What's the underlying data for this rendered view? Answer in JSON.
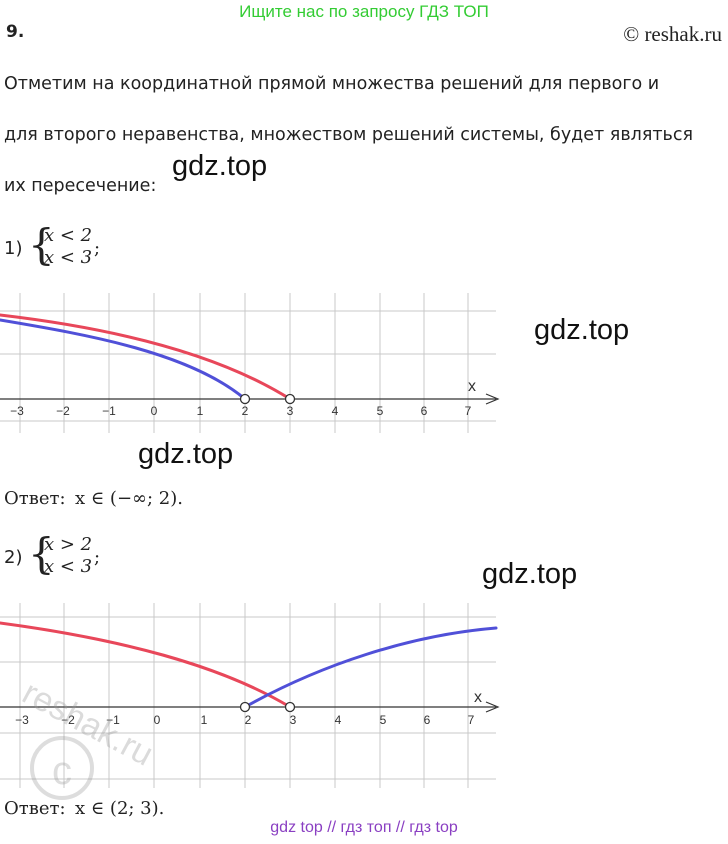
{
  "banner_top": "Ищите нас по запросу ГДЗ ТОП",
  "task_number": "9.",
  "copyright": "© reshak.ru",
  "intro_lines": [
    "Отметим на координатной прямой множества решений для первого и",
    "для второго неравенства, множеством решений системы, будет являться",
    "их пересечение:"
  ],
  "watermark_text": "gdz.top",
  "reshak_watermark": "reshak.ru",
  "systems": [
    {
      "number": "1)",
      "line1": "x < 2",
      "line2": "x < 3",
      "suffix": ";",
      "answer_label": "Ответ:",
      "answer_value": "x ∈ (−∞; 2)."
    },
    {
      "number": "2)",
      "line1": "x > 2",
      "line2": "x < 3",
      "suffix": ";",
      "answer_label": "Ответ:",
      "answer_value": "x ∈ (2; 3)."
    }
  ],
  "axis": {
    "label": "x",
    "ticks": [
      "−3",
      "−2",
      "−1",
      "0",
      "1",
      "2",
      "3",
      "4",
      "5",
      "6",
      "7"
    ]
  },
  "colors": {
    "red": "#e8475a",
    "blue": "#5050d8",
    "grid": "#c8c8c8",
    "banner": "#33cc33",
    "footer": "#8a3fc2"
  },
  "banner_bottom": "gdz top  //  гдз топ  //  гдз top"
}
